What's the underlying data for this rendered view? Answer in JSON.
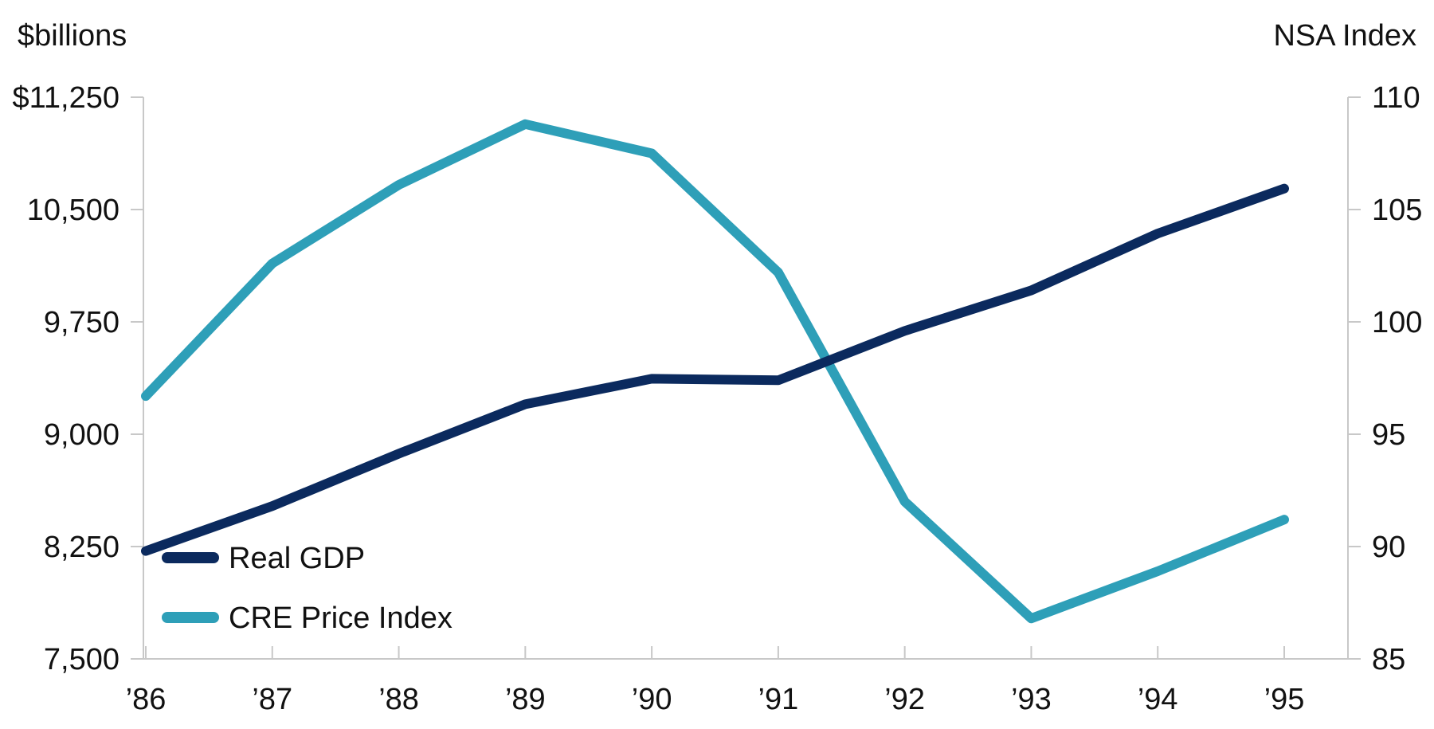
{
  "chart_data": {
    "type": "line",
    "title": "",
    "left_axis": {
      "label": "$billions",
      "ylim": [
        7500,
        11250
      ],
      "ticks": [
        7500,
        8250,
        9000,
        9750,
        10500,
        11250
      ],
      "tick_labels": [
        "7,500",
        "8,250",
        "9,000",
        "9,750",
        "10,500",
        "$11,250"
      ]
    },
    "right_axis": {
      "label": "NSA Index",
      "ylim": [
        85,
        110
      ],
      "ticks": [
        85,
        90,
        95,
        100,
        105,
        110
      ],
      "tick_labels": [
        "85",
        "90",
        "95",
        "100",
        "105",
        "110"
      ]
    },
    "categories": [
      "’86",
      "’87",
      "’88",
      "’89",
      "’90",
      "’91",
      "’92",
      "’93",
      "’94",
      "’95"
    ],
    "series": [
      {
        "name": "Real GDP",
        "axis": "left",
        "color": "#0b2a5e",
        "values": [
          8220,
          8520,
          8870,
          9200,
          9370,
          9360,
          9690,
          9960,
          10340,
          10640
        ]
      },
      {
        "name": "CRE Price Index",
        "axis": "right",
        "color": "#2e9fb8",
        "values": [
          96.7,
          102.6,
          106.1,
          108.8,
          107.5,
          102.2,
          92.0,
          86.8,
          88.9,
          91.2
        ]
      }
    ],
    "legend": {
      "placement": "bottom-left"
    },
    "grid": false
  }
}
